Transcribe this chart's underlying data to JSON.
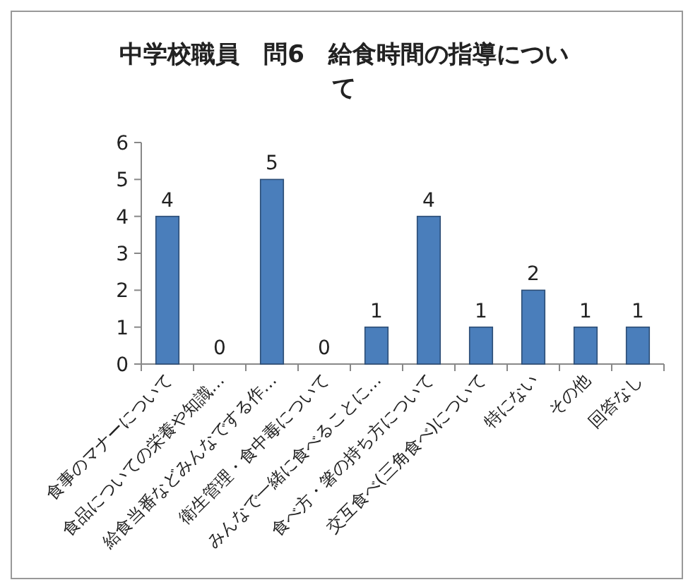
{
  "chart_data": {
    "type": "bar",
    "title": "中学校職員　問6　給食時間の指導について",
    "categories": [
      "食事のマナーについて",
      "食品についての栄養や知識…",
      "給食当番などみんなでする作…",
      "衛生管理・食中毒について",
      "みんなで一緒に食べることに…",
      "食べ方・箸の持ち方について",
      "交互食べ(三角食べ)について",
      "特にない",
      "その他",
      "回答なし"
    ],
    "values": [
      4,
      0,
      5,
      0,
      1,
      4,
      1,
      2,
      1,
      1
    ],
    "color": "#4a7ebb",
    "ylim": [
      0,
      6
    ],
    "yticks": [
      0,
      1,
      2,
      3,
      4,
      5,
      6
    ],
    "data_labels": true
  }
}
